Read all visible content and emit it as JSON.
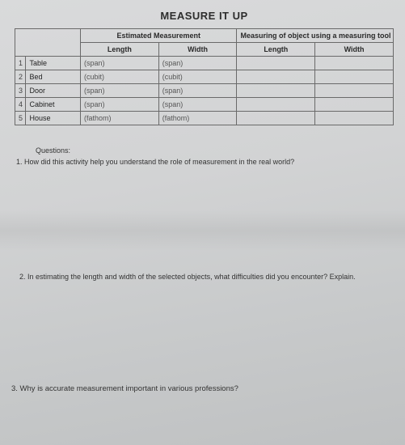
{
  "title": "MEASURE IT UP",
  "table": {
    "group_headers": {
      "estimated": "Estimated Measurement",
      "tool": "Measuring of object using a measuring tool"
    },
    "sub_headers": {
      "length": "Length",
      "width": "Width"
    },
    "rows": [
      {
        "n": "1",
        "object": "Table",
        "est_len_unit": "(span)",
        "est_wid_unit": "(span)"
      },
      {
        "n": "2",
        "object": "Bed",
        "est_len_unit": "(cubit)",
        "est_wid_unit": "(cubit)"
      },
      {
        "n": "3",
        "object": "Door",
        "est_len_unit": "(span)",
        "est_wid_unit": "(span)"
      },
      {
        "n": "4",
        "object": "Cabinet",
        "est_len_unit": "(span)",
        "est_wid_unit": "(span)"
      },
      {
        "n": "5",
        "object": "House",
        "est_len_unit": "(fathom)",
        "est_wid_unit": "(fathom)"
      }
    ]
  },
  "questions": {
    "header": "Questions:",
    "q1": "1. How did this activity help you understand the role of measurement in the real world?",
    "q2": "2.  In estimating the length and width of the selected objects, what difficulties did you encounter? Explain.",
    "q3": "3. Why is accurate measurement important in various professions?"
  },
  "style": {
    "title_fontsize_pt": 13,
    "body_fontsize_pt": 9,
    "text_color": "#2a2a2a",
    "border_color": "#6a6a6a",
    "background_gradient": [
      "#d9dadb",
      "#bfc1c2"
    ],
    "font_family": "Arial"
  }
}
